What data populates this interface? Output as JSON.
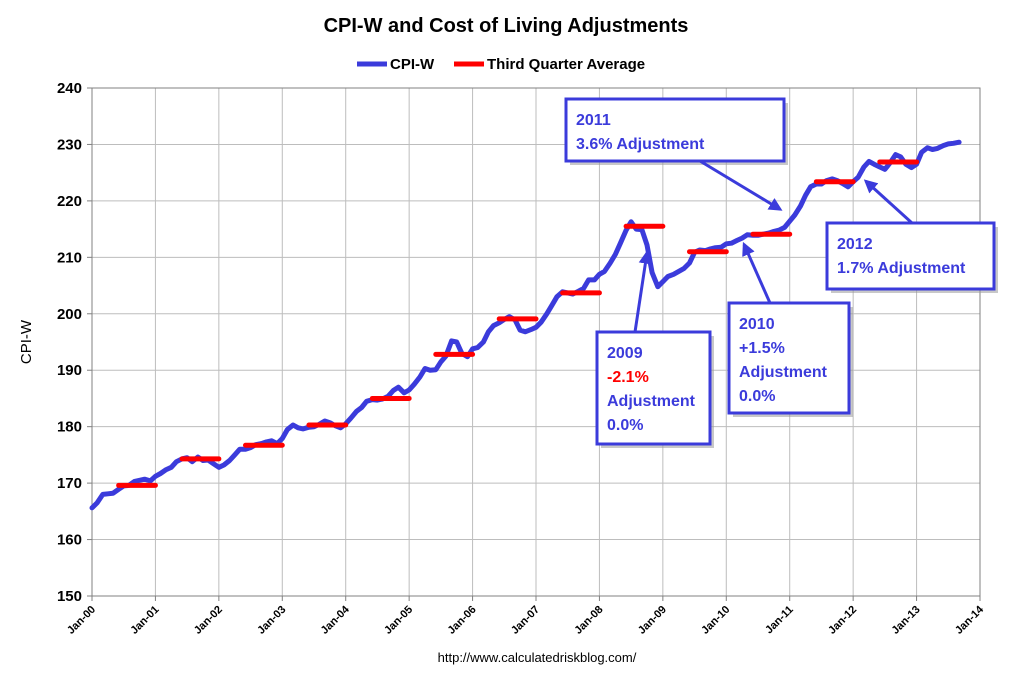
{
  "chart_data": {
    "type": "line",
    "title": "CPI-W and Cost of Living Adjustments",
    "ylabel": "CPI-W",
    "xlabel": "",
    "source": "http://www.calculatedriskblog.com/",
    "ylim": [
      150,
      240
    ],
    "yticks": [
      150,
      160,
      170,
      180,
      190,
      200,
      210,
      220,
      230,
      240
    ],
    "xlim": [
      2000.0,
      2014.0
    ],
    "xticks": [
      {
        "x": 2000,
        "label": "Jan-00"
      },
      {
        "x": 2001,
        "label": "Jan-01"
      },
      {
        "x": 2002,
        "label": "Jan-02"
      },
      {
        "x": 2003,
        "label": "Jan-03"
      },
      {
        "x": 2004,
        "label": "Jan-04"
      },
      {
        "x": 2005,
        "label": "Jan-05"
      },
      {
        "x": 2006,
        "label": "Jan-06"
      },
      {
        "x": 2007,
        "label": "Jan-07"
      },
      {
        "x": 2008,
        "label": "Jan-08"
      },
      {
        "x": 2009,
        "label": "Jan-09"
      },
      {
        "x": 2010,
        "label": "Jan-10"
      },
      {
        "x": 2011,
        "label": "Jan-11"
      },
      {
        "x": 2012,
        "label": "Jan-12"
      },
      {
        "x": 2013,
        "label": "Jan-13"
      },
      {
        "x": 2014,
        "label": "Jan-14"
      }
    ],
    "grid": true,
    "legend": {
      "position": "top-center",
      "entries": [
        {
          "name": "CPI-W",
          "color": "#3b3bdb"
        },
        {
          "name": "Third Quarter Average",
          "color": "#ff0000"
        }
      ]
    },
    "series": [
      {
        "name": "CPI-W",
        "color": "#3b3bdb",
        "points": [
          [
            2000.0,
            165.6
          ],
          [
            2000.08,
            166.5
          ],
          [
            2000.17,
            168.0
          ],
          [
            2000.25,
            168.1
          ],
          [
            2000.33,
            168.2
          ],
          [
            2000.42,
            168.9
          ],
          [
            2000.5,
            169.5
          ],
          [
            2000.58,
            169.6
          ],
          [
            2000.67,
            170.3
          ],
          [
            2000.75,
            170.5
          ],
          [
            2000.83,
            170.7
          ],
          [
            2000.92,
            170.4
          ],
          [
            2001.0,
            171.2
          ],
          [
            2001.08,
            171.7
          ],
          [
            2001.17,
            172.4
          ],
          [
            2001.25,
            172.8
          ],
          [
            2001.33,
            173.8
          ],
          [
            2001.42,
            174.3
          ],
          [
            2001.5,
            174.5
          ],
          [
            2001.58,
            173.8
          ],
          [
            2001.67,
            174.6
          ],
          [
            2001.75,
            174.0
          ],
          [
            2001.83,
            174.1
          ],
          [
            2001.92,
            173.4
          ],
          [
            2002.0,
            172.8
          ],
          [
            2002.08,
            173.2
          ],
          [
            2002.17,
            174.0
          ],
          [
            2002.25,
            175.0
          ],
          [
            2002.33,
            176.0
          ],
          [
            2002.42,
            176.0
          ],
          [
            2002.5,
            176.3
          ],
          [
            2002.58,
            176.8
          ],
          [
            2002.67,
            177.0
          ],
          [
            2002.75,
            177.3
          ],
          [
            2002.83,
            177.5
          ],
          [
            2002.92,
            177.0
          ],
          [
            2003.0,
            177.9
          ],
          [
            2003.08,
            179.5
          ],
          [
            2003.17,
            180.3
          ],
          [
            2003.25,
            179.8
          ],
          [
            2003.33,
            179.6
          ],
          [
            2003.42,
            179.9
          ],
          [
            2003.5,
            180.0
          ],
          [
            2003.58,
            180.4
          ],
          [
            2003.67,
            181.0
          ],
          [
            2003.75,
            180.7
          ],
          [
            2003.83,
            180.2
          ],
          [
            2003.92,
            179.8
          ],
          [
            2004.0,
            180.5
          ],
          [
            2004.08,
            181.5
          ],
          [
            2004.17,
            182.7
          ],
          [
            2004.25,
            183.4
          ],
          [
            2004.33,
            184.5
          ],
          [
            2004.42,
            184.8
          ],
          [
            2004.5,
            184.7
          ],
          [
            2004.58,
            184.9
          ],
          [
            2004.67,
            185.4
          ],
          [
            2004.75,
            186.4
          ],
          [
            2004.83,
            187.0
          ],
          [
            2004.92,
            186.0
          ],
          [
            2005.0,
            186.5
          ],
          [
            2005.08,
            187.5
          ],
          [
            2005.17,
            188.8
          ],
          [
            2005.25,
            190.3
          ],
          [
            2005.33,
            190.0
          ],
          [
            2005.42,
            190.1
          ],
          [
            2005.5,
            191.5
          ],
          [
            2005.58,
            192.5
          ],
          [
            2005.67,
            195.2
          ],
          [
            2005.75,
            195.0
          ],
          [
            2005.83,
            193.0
          ],
          [
            2005.92,
            192.4
          ],
          [
            2006.0,
            193.8
          ],
          [
            2006.08,
            194.0
          ],
          [
            2006.17,
            195.0
          ],
          [
            2006.25,
            196.8
          ],
          [
            2006.33,
            197.9
          ],
          [
            2006.42,
            198.4
          ],
          [
            2006.5,
            199.0
          ],
          [
            2006.58,
            199.5
          ],
          [
            2006.67,
            198.9
          ],
          [
            2006.75,
            197.1
          ],
          [
            2006.83,
            196.8
          ],
          [
            2006.92,
            197.2
          ],
          [
            2007.0,
            197.6
          ],
          [
            2007.08,
            198.5
          ],
          [
            2007.17,
            200.0
          ],
          [
            2007.25,
            201.5
          ],
          [
            2007.33,
            203.0
          ],
          [
            2007.42,
            203.9
          ],
          [
            2007.5,
            203.7
          ],
          [
            2007.58,
            203.5
          ],
          [
            2007.67,
            204.0
          ],
          [
            2007.75,
            204.5
          ],
          [
            2007.83,
            206.0
          ],
          [
            2007.92,
            206.0
          ],
          [
            2008.0,
            207.0
          ],
          [
            2008.08,
            207.5
          ],
          [
            2008.17,
            209.0
          ],
          [
            2008.25,
            210.5
          ],
          [
            2008.33,
            212.5
          ],
          [
            2008.42,
            214.8
          ],
          [
            2008.5,
            216.3
          ],
          [
            2008.58,
            215.0
          ],
          [
            2008.67,
            214.9
          ],
          [
            2008.75,
            212.2
          ],
          [
            2008.83,
            207.3
          ],
          [
            2008.92,
            204.8
          ],
          [
            2009.0,
            205.7
          ],
          [
            2009.08,
            206.6
          ],
          [
            2009.17,
            207.0
          ],
          [
            2009.25,
            207.5
          ],
          [
            2009.33,
            208.0
          ],
          [
            2009.42,
            209.0
          ],
          [
            2009.5,
            210.9
          ],
          [
            2009.58,
            211.3
          ],
          [
            2009.67,
            211.2
          ],
          [
            2009.75,
            211.5
          ],
          [
            2009.83,
            211.7
          ],
          [
            2009.92,
            211.8
          ],
          [
            2010.0,
            212.4
          ],
          [
            2010.08,
            212.5
          ],
          [
            2010.17,
            213.0
          ],
          [
            2010.25,
            213.4
          ],
          [
            2010.33,
            214.0
          ],
          [
            2010.42,
            213.9
          ],
          [
            2010.5,
            213.9
          ],
          [
            2010.58,
            214.1
          ],
          [
            2010.67,
            214.3
          ],
          [
            2010.75,
            214.6
          ],
          [
            2010.83,
            214.8
          ],
          [
            2010.92,
            215.3
          ],
          [
            2011.0,
            216.4
          ],
          [
            2011.08,
            217.5
          ],
          [
            2011.17,
            219.1
          ],
          [
            2011.25,
            221.0
          ],
          [
            2011.33,
            222.5
          ],
          [
            2011.42,
            223.0
          ],
          [
            2011.5,
            223.0
          ],
          [
            2011.58,
            223.6
          ],
          [
            2011.67,
            223.9
          ],
          [
            2011.75,
            223.6
          ],
          [
            2011.83,
            223.1
          ],
          [
            2011.92,
            222.5
          ],
          [
            2012.0,
            223.4
          ],
          [
            2012.08,
            224.2
          ],
          [
            2012.17,
            226.0
          ],
          [
            2012.25,
            227.0
          ],
          [
            2012.33,
            226.5
          ],
          [
            2012.42,
            226.0
          ],
          [
            2012.5,
            225.6
          ],
          [
            2012.58,
            226.7
          ],
          [
            2012.67,
            228.2
          ],
          [
            2012.75,
            227.8
          ],
          [
            2012.83,
            226.5
          ],
          [
            2012.92,
            225.9
          ],
          [
            2013.0,
            226.5
          ],
          [
            2013.08,
            228.6
          ],
          [
            2013.17,
            229.4
          ],
          [
            2013.25,
            229.1
          ],
          [
            2013.33,
            229.3
          ],
          [
            2013.42,
            229.8
          ],
          [
            2013.5,
            230.1
          ],
          [
            2013.58,
            230.2
          ],
          [
            2013.67,
            230.4
          ]
        ]
      },
      {
        "name": "Third Quarter Average",
        "color": "#ff0000",
        "segments": [
          {
            "x0": 2000.42,
            "x1": 2001.0,
            "y": 169.6
          },
          {
            "x0": 2001.42,
            "x1": 2002.0,
            "y": 174.3
          },
          {
            "x0": 2002.42,
            "x1": 2003.0,
            "y": 176.7
          },
          {
            "x0": 2003.42,
            "x1": 2004.0,
            "y": 180.3
          },
          {
            "x0": 2004.42,
            "x1": 2005.0,
            "y": 185.0
          },
          {
            "x0": 2005.42,
            "x1": 2006.0,
            "y": 192.8
          },
          {
            "x0": 2006.42,
            "x1": 2007.0,
            "y": 199.1
          },
          {
            "x0": 2007.42,
            "x1": 2008.0,
            "y": 203.7
          },
          {
            "x0": 2008.42,
            "x1": 2009.0,
            "y": 215.5
          },
          {
            "x0": 2009.42,
            "x1": 2010.0,
            "y": 211.0
          },
          {
            "x0": 2010.42,
            "x1": 2011.0,
            "y": 214.1
          },
          {
            "x0": 2011.42,
            "x1": 2012.0,
            "y": 223.4
          },
          {
            "x0": 2012.42,
            "x1": 2013.0,
            "y": 226.9
          }
        ]
      }
    ],
    "annotations": [
      {
        "id": "ann-2011",
        "lines": [
          {
            "text": "2011",
            "color": "#3b3bdb"
          },
          {
            "text": " 3.6% Adjustment",
            "color": "#3b3bdb"
          }
        ],
        "target": [
          2010.85,
          218.5
        ]
      },
      {
        "id": "ann-2012",
        "lines": [
          {
            "text": "2012",
            "color": "#3b3bdb"
          },
          {
            "text": "1.7% Adjustment",
            "color": "#3b3bdb"
          }
        ],
        "target": [
          2012.2,
          223.5
        ]
      },
      {
        "id": "ann-2009",
        "lines": [
          {
            "text": "2009",
            "color": "#3b3bdb"
          },
          {
            "text": "-2.1%",
            "color": "#ff0000"
          },
          {
            "text": "Adjustment",
            "color": "#3b3bdb"
          },
          {
            "text": "0.0%",
            "color": "#3b3bdb"
          }
        ],
        "target": [
          2008.75,
          210.8
        ]
      },
      {
        "id": "ann-2010",
        "lines": [
          {
            "text": "2010",
            "color": "#3b3bdb"
          },
          {
            "text": "+1.5%",
            "color": "#3b3bdb"
          },
          {
            "text": "Adjustment",
            "color": "#3b3bdb"
          },
          {
            "text": "0.0%",
            "color": "#3b3bdb"
          }
        ],
        "target": [
          2010.28,
          212.3
        ]
      }
    ]
  }
}
